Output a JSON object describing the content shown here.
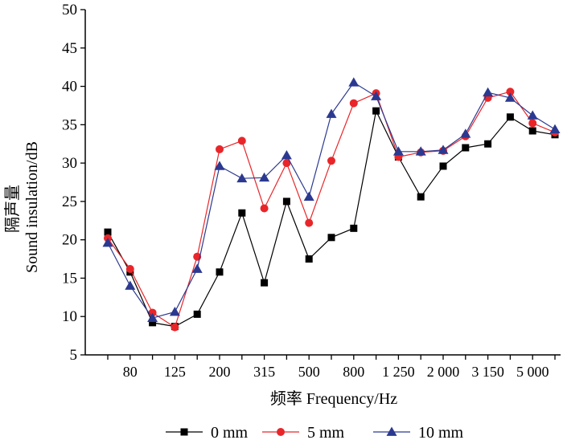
{
  "chart_data": {
    "type": "line",
    "title": "",
    "xlabel": "频率 Frequency/Hz",
    "ylabel_lines": [
      "隔声量",
      "Sound insulation/dB"
    ],
    "ylim": [
      5,
      50
    ],
    "yticks": [
      "5",
      "10",
      "15",
      "20",
      "25",
      "30",
      "35",
      "40",
      "45",
      "50"
    ],
    "x": [
      "63",
      "80",
      "100",
      "125",
      "160",
      "200",
      "250",
      "315",
      "400",
      "500",
      "630",
      "800",
      "1000",
      "1250",
      "1600",
      "2000",
      "2500",
      "3150",
      "4000",
      "5000",
      "6300"
    ],
    "xtick_labels": [
      "",
      "80",
      "",
      "125",
      "",
      "200",
      "",
      "315",
      "",
      "500",
      "",
      "800",
      "",
      "1 250",
      "",
      "2 000",
      "",
      "3 150",
      "",
      "5 000",
      ""
    ],
    "legend_position": "bottom",
    "series": [
      {
        "name": "0 mm",
        "color": "#000000",
        "marker": "square",
        "values": [
          21.0,
          15.8,
          9.2,
          8.7,
          10.3,
          15.8,
          23.5,
          14.4,
          25.0,
          17.5,
          20.3,
          21.5,
          36.8,
          30.8,
          25.6,
          29.6,
          32.0,
          32.5,
          36.0,
          34.2,
          33.7
        ]
      },
      {
        "name": "5 mm",
        "color": "#e8262a",
        "marker": "circle",
        "values": [
          20.2,
          16.2,
          10.5,
          8.6,
          17.8,
          31.8,
          32.9,
          24.1,
          30.0,
          22.2,
          30.3,
          37.8,
          39.1,
          30.8,
          31.4,
          31.6,
          33.5,
          38.5,
          39.3,
          35.2,
          34.0
        ]
      },
      {
        "name": "10 mm",
        "color": "#2b3990",
        "marker": "triangle",
        "values": [
          19.6,
          14.0,
          9.8,
          10.6,
          16.2,
          29.6,
          28.0,
          28.1,
          31.0,
          25.6,
          36.4,
          40.5,
          38.7,
          31.5,
          31.5,
          31.7,
          33.8,
          39.2,
          38.5,
          36.2,
          34.4
        ]
      }
    ]
  }
}
